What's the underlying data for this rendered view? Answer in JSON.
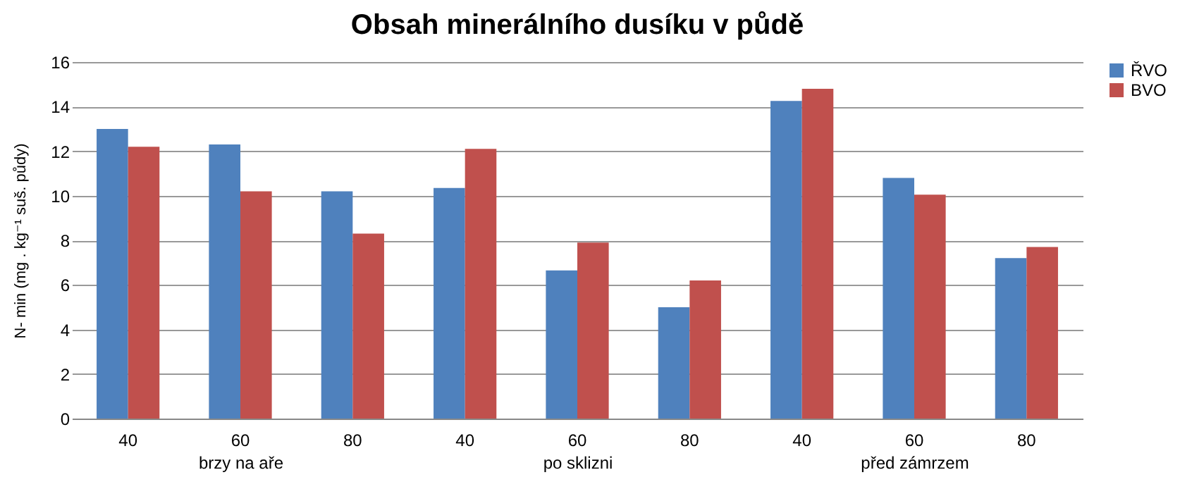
{
  "chart_data": {
    "type": "bar",
    "title": "Obsah  minerálního dusíku v půdě",
    "ylabel": "N- min  (mg . kg⁻¹ suš. půdy)",
    "categories": [
      "40",
      "60",
      "80",
      "40",
      "60",
      "80",
      "40",
      "60",
      "80"
    ],
    "annotations": [
      "brzy na aře",
      "po sklizni",
      "před zámrzem"
    ],
    "series": [
      {
        "name": "ŘVO",
        "color": "#4f81bd",
        "values": [
          13.0,
          12.3,
          10.2,
          10.35,
          6.65,
          5.0,
          14.25,
          10.8,
          7.2
        ]
      },
      {
        "name": "BVO",
        "color": "#c0504d",
        "values": [
          12.2,
          10.2,
          8.3,
          12.1,
          7.9,
          6.2,
          14.8,
          10.05,
          7.7
        ]
      }
    ],
    "ylim": [
      0,
      16
    ],
    "yticks": [
      0,
      2,
      4,
      6,
      8,
      10,
      12,
      14,
      16
    ],
    "grid": "y",
    "legend": "right"
  }
}
